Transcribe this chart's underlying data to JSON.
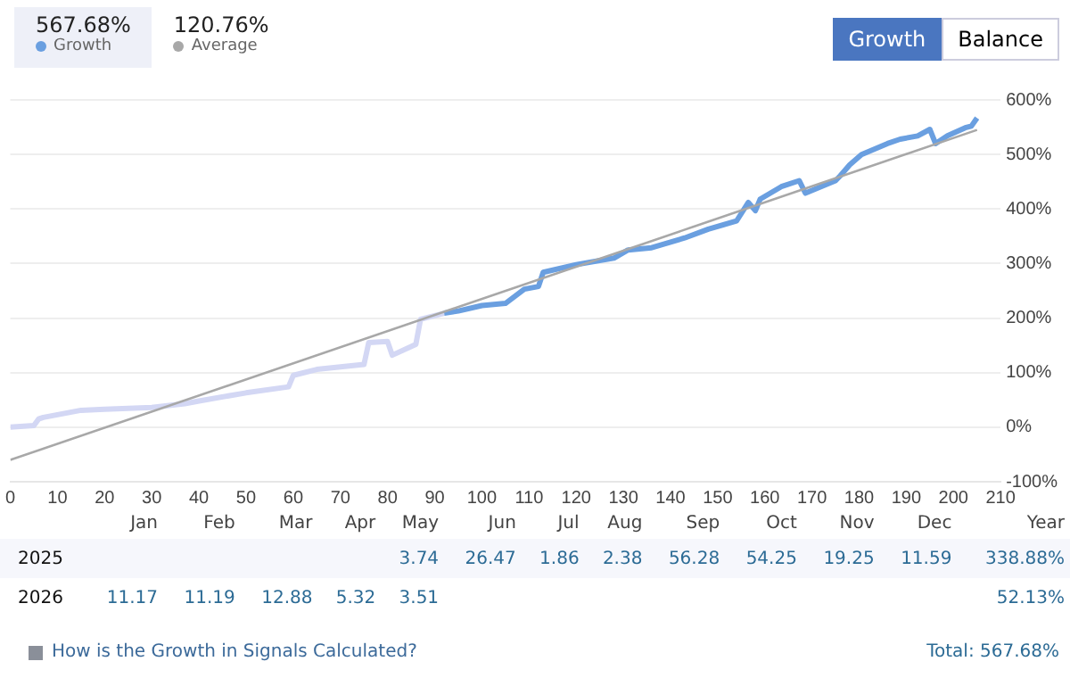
{
  "chart_data": [
    {
      "type": "line",
      "legend": "top left",
      "grid": "y",
      "marker": "none",
      "line_style": "solid",
      "annotations": [
        "567.68%",
        "120.76%",
        "Growth",
        "Balance"
      ],
      "xlim": [
        0,
        210
      ],
      "xticks": [
        0,
        10,
        20,
        30,
        40,
        50,
        60,
        70,
        80,
        90,
        100,
        110,
        120,
        130,
        140,
        150,
        160,
        170,
        180,
        190,
        200,
        210
      ],
      "ylim": [
        -100,
        600
      ],
      "yticks": [
        {
          "value": -100,
          "label": "-100%"
        },
        {
          "value": 0,
          "label": "0%"
        },
        {
          "value": 100,
          "label": "100%"
        },
        {
          "value": 200,
          "label": "200%"
        },
        {
          "value": 300,
          "label": "300%"
        },
        {
          "value": 400,
          "label": "400%"
        },
        {
          "value": 500,
          "label": "500%"
        },
        {
          "value": 600,
          "label": "600%"
        }
      ],
      "series": [
        {
          "color": "#d3d7f4",
          "x": [
            0,
            5,
            6,
            7,
            15,
            20,
            30,
            37,
            40,
            50,
            59,
            60,
            65,
            75,
            76,
            80,
            81,
            86,
            87,
            92
          ],
          "values": [
            0,
            3,
            15,
            18,
            31,
            33,
            36,
            43,
            48,
            63,
            74,
            95,
            106,
            115,
            155,
            157,
            132,
            152,
            198,
            209
          ]
        },
        {
          "name": "Growth",
          "color": "#6a9fe0",
          "x": [
            92,
            95,
            100,
            105,
            109,
            112,
            113,
            120,
            128,
            131,
            136,
            143,
            148,
            154,
            156.5,
            158,
            159,
            163.5,
            167.3,
            168.6,
            175,
            176,
            178,
            180.5,
            186,
            188.7,
            192.4,
            195,
            196.2,
            198.7,
            202.5,
            203.8,
            205
          ],
          "values": [
            209,
            213,
            223,
            227,
            253,
            258,
            284,
            298,
            310,
            325,
            329,
            347,
            363,
            378,
            412,
            397,
            418,
            441,
            452,
            429,
            452,
            461,
            481,
            500,
            520,
            528,
            534,
            546,
            520,
            534,
            549,
            552,
            567
          ]
        },
        {
          "name": "Average",
          "color": "#a8a8a8",
          "x": [
            0,
            205
          ],
          "values": [
            -60,
            545
          ]
        }
      ]
    },
    {
      "type": "other",
      "categories": [
        "Jan",
        "Feb",
        "Mar",
        "Apr",
        "May",
        "Jun",
        "Jul",
        "Aug",
        "Sep",
        "Oct",
        "Nov",
        "Dec",
        "Year"
      ],
      "y_categories": [
        "2025",
        "2026"
      ],
      "cell_labels": [
        [
          null,
          null,
          null,
          null,
          "3.74",
          "26.47",
          "1.86",
          "2.38",
          "56.28",
          "54.25",
          "19.25",
          "11.59",
          "338.88%"
        ],
        [
          "11.17",
          "11.19",
          "12.88",
          "5.32",
          "3.51",
          null,
          null,
          null,
          null,
          null,
          null,
          null,
          "52.13%"
        ]
      ],
      "annotations": [
        "How is the Growth in Signals Calculated?",
        "Total: 567.68%"
      ]
    }
  ]
}
